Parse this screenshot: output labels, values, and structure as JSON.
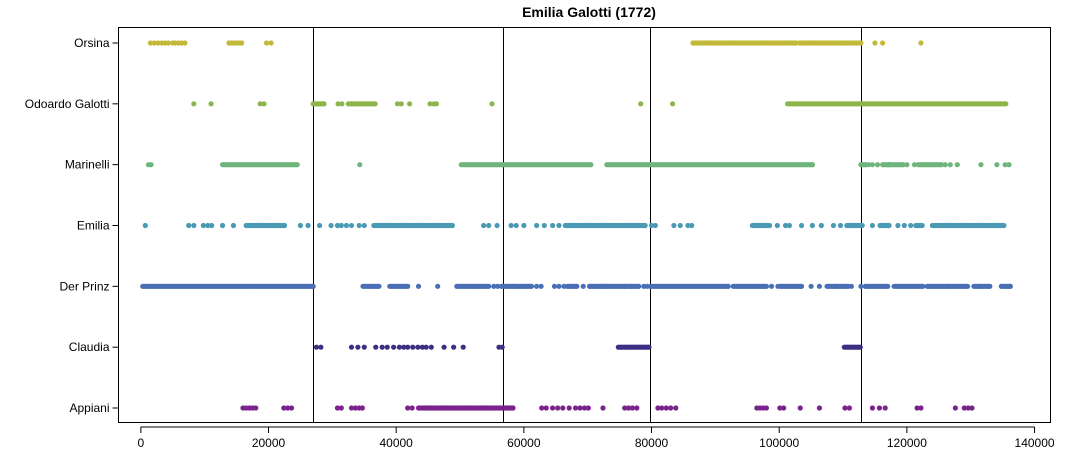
{
  "chart_data": {
    "type": "scatter",
    "title": "Emilia Galotti (1772)",
    "xlabel": "",
    "ylabel": "",
    "xlim": [
      -3500,
      142500
    ],
    "xticks": [
      0,
      20000,
      40000,
      60000,
      80000,
      100000,
      120000,
      140000
    ],
    "xtick_labels": [
      "0",
      "20000",
      "40000",
      "60000",
      "80000",
      "100000",
      "120000",
      "140000"
    ],
    "act_boundaries": [
      27000,
      56800,
      79800,
      112800
    ],
    "categories": [
      "Orsina",
      "Odoardo Galotti",
      "Marinelli",
      "Emilia",
      "Der Prinz",
      "Claudia",
      "Appiani"
    ],
    "series": [
      {
        "name": "Orsina",
        "color": "#c2b93a",
        "points": [
          1500,
          2100,
          2700,
          3300,
          3800,
          4300,
          5000,
          5400,
          5900,
          6400,
          6900,
          13800,
          14200,
          14600,
          15000,
          15400,
          15800,
          19700,
          20400
        ],
        "ranges": [
          [
            86500,
            102600
          ],
          [
            103200,
            109800
          ],
          [
            110200,
            112800
          ]
        ],
        "extra_points": [
          115000,
          116200,
          122200
        ]
      },
      {
        "name": "Odoardo Galotti",
        "color": "#8db54a",
        "points": [
          8300,
          11000,
          18700,
          19300,
          30900,
          31500,
          40200,
          40800,
          42100,
          45300,
          45900,
          46300,
          55000,
          78300,
          83300
        ],
        "ranges": [
          [
            27000,
            28700
          ],
          [
            32500,
            36700
          ],
          [
            101300,
            135500
          ]
        ],
        "extra_points": []
      },
      {
        "name": "Marinelli",
        "color": "#6db57a",
        "points": [
          1200,
          1600,
          34300,
          114000,
          114600,
          115400,
          117200,
          120000,
          121200,
          126000,
          126800,
          127900,
          131600,
          134100,
          135400,
          136000
        ],
        "ranges": [
          [
            12800,
            24500
          ],
          [
            50200,
            70500
          ],
          [
            73000,
            105200
          ],
          [
            112800,
            113600
          ],
          [
            116200,
            119400
          ],
          [
            121800,
            125400
          ]
        ],
        "extra_points": []
      },
      {
        "name": "Emilia",
        "color": "#4b9ab4",
        "points": [
          700,
          7500,
          8300,
          9800,
          10500,
          11100,
          12800,
          14500,
          25000,
          26200,
          28000,
          29800,
          30800,
          31400,
          32200,
          33000,
          34200,
          35000,
          53700,
          54500,
          55800,
          58000,
          58800,
          60000,
          62000,
          63200,
          64500,
          65500,
          80000,
          80600,
          83500,
          84500,
          85700,
          86300,
          98500,
          99700,
          101000,
          101600,
          103500,
          105200,
          106600,
          108500,
          109600,
          111000,
          112500,
          114600,
          118600,
          119600,
          120600
        ],
        "ranges": [
          [
            16500,
            22500
          ],
          [
            36500,
            48800
          ],
          [
            66500,
            79000
          ],
          [
            95800,
            98200
          ],
          [
            110600,
            113000
          ],
          [
            115800,
            117200
          ],
          [
            121400,
            122400
          ],
          [
            124000,
            135200
          ]
        ],
        "extra_points": []
      },
      {
        "name": "Der Prinz",
        "color": "#4a6fb5",
        "points": [
          43500,
          46500,
          53000,
          55300,
          55900,
          58300,
          62000,
          62700,
          64800,
          65500,
          66300,
          69300,
          70300,
          71500,
          72200,
          73000,
          75800,
          76700,
          78800,
          79300,
          98000,
          98800,
          99800,
          105000,
          106300,
          108800,
          111300,
          112800,
          124500,
          125500,
          126500,
          131500
        ],
        "ranges": [
          [
            300,
            27000
          ],
          [
            34800,
            37300
          ],
          [
            39000,
            41800
          ],
          [
            49500,
            54500
          ],
          [
            56500,
            61200
          ],
          [
            66800,
            68300
          ],
          [
            70300,
            78000
          ],
          [
            79800,
            92000
          ],
          [
            92800,
            97800
          ],
          [
            100200,
            103500
          ],
          [
            107500,
            110800
          ],
          [
            113500,
            117000
          ],
          [
            118000,
            122500
          ],
          [
            123200,
            129500
          ],
          [
            130500,
            133000
          ],
          [
            134800,
            136200
          ]
        ],
        "extra_points": []
      },
      {
        "name": "Claudia",
        "color": "#3b2f83",
        "points": [
          27500,
          28200,
          33000,
          34000,
          35000,
          36800,
          37800,
          38600,
          39600,
          40500,
          41200,
          41800,
          42600,
          43400,
          44100,
          44700,
          45500,
          47500,
          49000,
          50500,
          56100,
          56600
        ],
        "ranges": [
          [
            74800,
            79600
          ],
          [
            110200,
            112700
          ]
        ],
        "extra_points": []
      },
      {
        "name": "Appiani",
        "color": "#7b238c",
        "points": [
          16000,
          16500,
          17000,
          17500,
          18000,
          22400,
          23000,
          23600,
          30800,
          31400,
          33000,
          33600,
          34200,
          34700,
          41800,
          42500,
          62800,
          63500,
          64500,
          65300,
          66100,
          67100,
          68100,
          68800,
          69500,
          70100,
          72400,
          75800,
          76400,
          77000,
          77700,
          81000,
          81600,
          82300,
          83000,
          83800,
          96500,
          97000,
          97500,
          98000,
          100100,
          100700,
          103300,
          106300,
          110300,
          111000,
          114600,
          115700,
          116600,
          121600,
          122200,
          127600,
          129000,
          129600,
          130200
        ],
        "ranges": [
          [
            43500,
            58300
          ]
        ],
        "extra_points": []
      }
    ]
  }
}
